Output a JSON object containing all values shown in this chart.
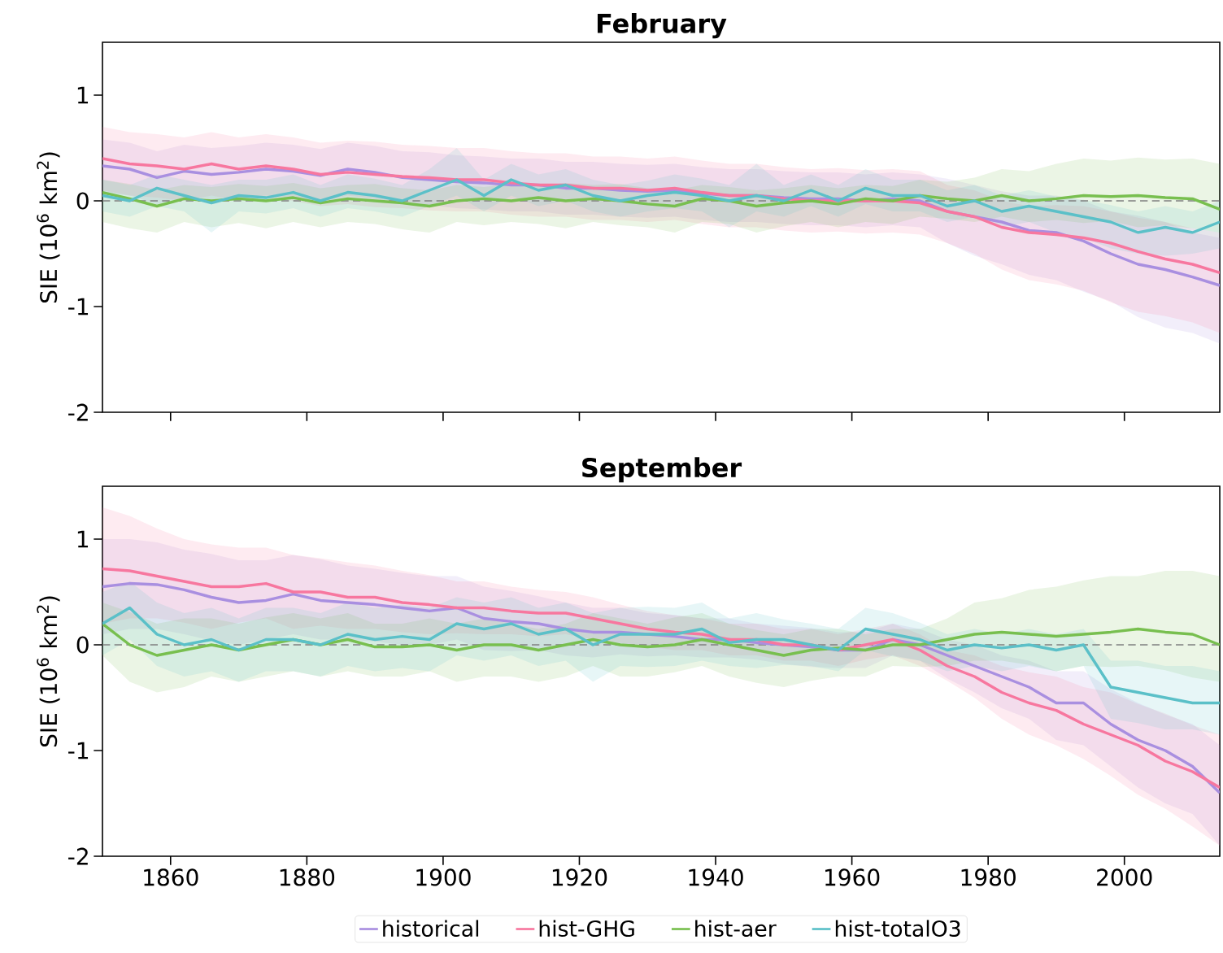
{
  "chart_data": [
    {
      "type": "line",
      "title": "February",
      "ylabel": "SIE (10$^{6}$ km$^{2}$)",
      "xlim": [
        1850,
        2014
      ],
      "ylim": [
        -2,
        1.5
      ],
      "xticks": [
        1860,
        1880,
        1900,
        1920,
        1940,
        1960,
        1980,
        2000
      ],
      "yticks": [
        -2,
        -1,
        0,
        1
      ],
      "tick_labels": "y",
      "legend": false,
      "x": [
        1850,
        1854,
        1858,
        1862,
        1866,
        1870,
        1874,
        1878,
        1882,
        1886,
        1890,
        1894,
        1898,
        1902,
        1906,
        1910,
        1914,
        1918,
        1922,
        1926,
        1930,
        1934,
        1938,
        1942,
        1946,
        1950,
        1954,
        1958,
        1962,
        1966,
        1970,
        1974,
        1978,
        1982,
        1986,
        1990,
        1994,
        1998,
        2002,
        2006,
        2010,
        2014
      ],
      "ref_lines": [
        {
          "axis": "y",
          "value": 0,
          "color": "#808080",
          "line_style": "dashed"
        }
      ],
      "series": [
        {
          "color": "#a98fe0",
          "values": [
            0.33,
            0.3,
            0.22,
            0.28,
            0.25,
            0.27,
            0.3,
            0.28,
            0.24,
            0.3,
            0.27,
            0.22,
            0.2,
            0.18,
            0.17,
            0.15,
            0.15,
            0.12,
            0.12,
            0.1,
            0.09,
            0.1,
            0.07,
            0.05,
            0.05,
            0.03,
            0.02,
            0.02,
            0.0,
            0.02,
            0.0,
            -0.1,
            -0.15,
            -0.2,
            -0.28,
            -0.3,
            -0.38,
            -0.5,
            -0.6,
            -0.65,
            -0.72,
            -0.8
          ],
          "upper": [
            0.58,
            0.55,
            0.47,
            0.53,
            0.5,
            0.52,
            0.55,
            0.53,
            0.49,
            0.55,
            0.52,
            0.47,
            0.46,
            0.43,
            0.42,
            0.4,
            0.4,
            0.37,
            0.37,
            0.35,
            0.34,
            0.35,
            0.32,
            0.3,
            0.3,
            0.28,
            0.27,
            0.27,
            0.25,
            0.27,
            0.25,
            0.21,
            0.15,
            0.09,
            0.05,
            0.05,
            0.0,
            -0.1,
            -0.14,
            -0.2,
            -0.3,
            -0.35
          ],
          "lower": [
            0.08,
            0.05,
            -0.03,
            0.03,
            0.0,
            0.02,
            0.05,
            0.03,
            -0.01,
            0.05,
            0.02,
            -0.03,
            -0.04,
            -0.07,
            -0.08,
            -0.1,
            -0.1,
            -0.13,
            -0.13,
            -0.15,
            -0.16,
            -0.15,
            -0.18,
            -0.2,
            -0.2,
            -0.22,
            -0.23,
            -0.23,
            -0.25,
            -0.23,
            -0.25,
            -0.4,
            -0.52,
            -0.6,
            -0.7,
            -0.75,
            -0.86,
            -0.95,
            -1.1,
            -1.2,
            -1.25,
            -1.35
          ]
        },
        {
          "color": "#f7779f",
          "values": [
            0.4,
            0.35,
            0.33,
            0.3,
            0.35,
            0.3,
            0.33,
            0.3,
            0.25,
            0.27,
            0.25,
            0.23,
            0.22,
            0.2,
            0.2,
            0.17,
            0.15,
            0.15,
            0.12,
            0.12,
            0.1,
            0.12,
            0.08,
            0.05,
            0.05,
            0.02,
            0.0,
            0.0,
            0.0,
            0.0,
            -0.02,
            -0.1,
            -0.15,
            -0.25,
            -0.3,
            -0.32,
            -0.35,
            -0.4,
            -0.48,
            -0.55,
            -0.6,
            -0.68
          ],
          "upper": [
            0.7,
            0.65,
            0.63,
            0.6,
            0.65,
            0.6,
            0.63,
            0.6,
            0.55,
            0.57,
            0.56,
            0.53,
            0.52,
            0.5,
            0.5,
            0.47,
            0.45,
            0.45,
            0.42,
            0.42,
            0.4,
            0.42,
            0.38,
            0.35,
            0.35,
            0.32,
            0.3,
            0.31,
            0.29,
            0.3,
            0.28,
            0.15,
            0.1,
            0.0,
            -0.05,
            -0.04,
            -0.05,
            -0.1,
            -0.16,
            -0.2,
            -0.26,
            -0.3
          ],
          "lower": [
            0.1,
            0.05,
            0.03,
            0.0,
            0.05,
            0.0,
            0.03,
            0.0,
            -0.05,
            -0.03,
            -0.06,
            -0.07,
            -0.09,
            -0.1,
            -0.1,
            -0.13,
            -0.15,
            -0.15,
            -0.18,
            -0.18,
            -0.2,
            -0.18,
            -0.22,
            -0.25,
            -0.25,
            -0.28,
            -0.3,
            -0.29,
            -0.31,
            -0.3,
            -0.32,
            -0.4,
            -0.5,
            -0.65,
            -0.75,
            -0.79,
            -0.85,
            -0.96,
            -1.05,
            -1.09,
            -1.15,
            -1.25
          ]
        },
        {
          "color": "#78bf4f",
          "values": [
            0.08,
            0.02,
            -0.05,
            0.02,
            0.0,
            0.02,
            0.0,
            0.03,
            -0.02,
            0.02,
            0.0,
            -0.02,
            -0.05,
            0.0,
            0.02,
            0.0,
            0.03,
            0.0,
            0.02,
            0.0,
            -0.03,
            -0.05,
            0.02,
            0.0,
            -0.05,
            -0.02,
            0.0,
            -0.03,
            0.02,
            0.0,
            0.05,
            0.02,
            0.0,
            0.05,
            0.0,
            0.02,
            0.05,
            0.04,
            0.05,
            0.03,
            0.02,
            -0.08
          ],
          "upper": [
            0.2,
            0.16,
            0.1,
            0.15,
            0.13,
            0.16,
            0.14,
            0.17,
            0.12,
            0.15,
            0.16,
            0.12,
            0.1,
            0.15,
            0.13,
            0.16,
            0.14,
            0.17,
            0.15,
            0.16,
            0.12,
            0.1,
            0.15,
            0.13,
            0.1,
            0.12,
            0.15,
            0.12,
            0.15,
            0.14,
            0.2,
            0.18,
            0.22,
            0.3,
            0.28,
            0.35,
            0.4,
            0.38,
            0.41,
            0.39,
            0.4,
            0.35
          ],
          "lower": [
            -0.2,
            -0.26,
            -0.3,
            -0.2,
            -0.25,
            -0.21,
            -0.26,
            -0.2,
            -0.25,
            -0.2,
            -0.22,
            -0.27,
            -0.3,
            -0.2,
            -0.23,
            -0.2,
            -0.22,
            -0.26,
            -0.2,
            -0.23,
            -0.25,
            -0.3,
            -0.2,
            -0.22,
            -0.3,
            -0.24,
            -0.2,
            -0.25,
            -0.2,
            -0.22,
            -0.15,
            -0.17,
            -0.2,
            -0.15,
            -0.2,
            -0.18,
            -0.21,
            -0.19,
            -0.25,
            -0.23,
            -0.26,
            -0.3
          ]
        },
        {
          "color": "#5bc0c8",
          "values": [
            0.05,
            0.0,
            0.12,
            0.05,
            -0.02,
            0.05,
            0.03,
            0.08,
            0.0,
            0.08,
            0.05,
            0.0,
            0.1,
            0.2,
            0.05,
            0.2,
            0.1,
            0.15,
            0.05,
            0.0,
            0.05,
            0.08,
            0.05,
            0.0,
            0.05,
            0.0,
            0.1,
            0.0,
            0.12,
            0.05,
            0.05,
            -0.05,
            0.0,
            -0.1,
            -0.05,
            -0.1,
            -0.15,
            -0.2,
            -0.3,
            -0.25,
            -0.3,
            -0.2
          ],
          "upper": [
            0.2,
            0.15,
            0.25,
            0.2,
            0.15,
            0.2,
            0.2,
            0.25,
            0.15,
            0.25,
            0.21,
            0.15,
            0.3,
            0.5,
            0.2,
            0.35,
            0.25,
            0.3,
            0.2,
            0.15,
            0.19,
            0.25,
            0.21,
            0.15,
            0.35,
            0.15,
            0.25,
            0.15,
            0.3,
            0.2,
            0.2,
            0.1,
            0.15,
            0.05,
            0.1,
            0.04,
            0.01,
            -0.04,
            -0.1,
            -0.05,
            -0.1,
            0.0
          ],
          "lower": [
            -0.1,
            -0.15,
            -0.05,
            -0.1,
            -0.3,
            -0.1,
            -0.12,
            -0.07,
            -0.15,
            -0.07,
            -0.1,
            -0.15,
            -0.05,
            0.05,
            -0.1,
            0.05,
            -0.05,
            0.0,
            -0.1,
            -0.15,
            -0.1,
            -0.07,
            -0.1,
            -0.25,
            -0.1,
            -0.15,
            -0.05,
            -0.15,
            -0.03,
            -0.1,
            -0.1,
            -0.2,
            -0.15,
            -0.25,
            -0.2,
            -0.3,
            -0.35,
            -0.45,
            -0.5,
            -0.52,
            -0.5,
            -0.45
          ]
        }
      ]
    },
    {
      "type": "line",
      "title": "September",
      "ylabel": "SIE (10$^{6}$ km$^{2}$)",
      "xlim": [
        1850,
        2014
      ],
      "ylim": [
        -2,
        1.5
      ],
      "xticks": [
        1860,
        1880,
        1900,
        1920,
        1940,
        1960,
        1980,
        2000
      ],
      "yticks": [
        -2,
        -1,
        0,
        1
      ],
      "legend": "bottom",
      "x": [
        1850,
        1854,
        1858,
        1862,
        1866,
        1870,
        1874,
        1878,
        1882,
        1886,
        1890,
        1894,
        1898,
        1902,
        1906,
        1910,
        1914,
        1918,
        1922,
        1926,
        1930,
        1934,
        1938,
        1942,
        1946,
        1950,
        1954,
        1958,
        1962,
        1966,
        1970,
        1974,
        1978,
        1982,
        1986,
        1990,
        1994,
        1998,
        2002,
        2006,
        2010,
        2014
      ],
      "ref_lines": [
        {
          "axis": "y",
          "value": 0,
          "color": "#808080",
          "line_style": "dashed"
        }
      ],
      "series": [
        {
          "name": "historical",
          "color": "#a98fe0",
          "values": [
            0.55,
            0.58,
            0.57,
            0.52,
            0.45,
            0.4,
            0.42,
            0.48,
            0.42,
            0.4,
            0.38,
            0.35,
            0.32,
            0.35,
            0.25,
            0.22,
            0.2,
            0.15,
            0.12,
            0.12,
            0.1,
            0.08,
            0.05,
            0.05,
            0.02,
            0.0,
            -0.02,
            -0.05,
            -0.05,
            0.05,
            0.0,
            -0.1,
            -0.2,
            -0.3,
            -0.4,
            -0.55,
            -0.55,
            -0.75,
            -0.9,
            -1.0,
            -1.15,
            -1.4
          ],
          "upper": [
            1.0,
            1.0,
            0.97,
            0.9,
            0.86,
            0.8,
            0.8,
            0.85,
            0.81,
            0.75,
            0.72,
            0.68,
            0.65,
            0.65,
            0.55,
            0.51,
            0.46,
            0.4,
            0.35,
            0.35,
            0.3,
            0.28,
            0.25,
            0.25,
            0.2,
            0.18,
            0.16,
            0.12,
            0.12,
            0.2,
            0.15,
            0.05,
            0.0,
            -0.1,
            -0.15,
            -0.25,
            -0.25,
            -0.42,
            -0.55,
            -0.66,
            -0.75,
            -0.95
          ],
          "lower": [
            0.1,
            0.15,
            0.15,
            0.1,
            0.04,
            0.0,
            0.05,
            0.1,
            0.05,
            0.05,
            0.03,
            0.0,
            0.0,
            0.05,
            -0.05,
            -0.06,
            -0.05,
            -0.1,
            -0.12,
            -0.09,
            -0.11,
            -0.1,
            -0.12,
            -0.12,
            -0.14,
            -0.18,
            -0.21,
            -0.22,
            -0.22,
            -0.1,
            -0.15,
            -0.32,
            -0.45,
            -0.6,
            -0.7,
            -0.9,
            -0.95,
            -1.15,
            -1.35,
            -1.5,
            -1.6,
            -1.9
          ]
        },
        {
          "name": "hist-GHG",
          "color": "#f7779f",
          "values": [
            0.72,
            0.7,
            0.65,
            0.6,
            0.55,
            0.55,
            0.58,
            0.5,
            0.5,
            0.45,
            0.45,
            0.4,
            0.38,
            0.35,
            0.35,
            0.32,
            0.3,
            0.3,
            0.25,
            0.2,
            0.15,
            0.12,
            0.1,
            0.05,
            0.05,
            0.0,
            0.0,
            -0.05,
            0.0,
            0.05,
            -0.05,
            -0.2,
            -0.3,
            -0.45,
            -0.55,
            -0.62,
            -0.75,
            -0.85,
            -0.95,
            -1.1,
            -1.2,
            -1.35
          ],
          "upper": [
            1.3,
            1.22,
            1.1,
            1.0,
            0.95,
            0.92,
            0.92,
            0.85,
            0.82,
            0.78,
            0.75,
            0.7,
            0.66,
            0.6,
            0.6,
            0.55,
            0.52,
            0.5,
            0.45,
            0.38,
            0.32,
            0.28,
            0.25,
            0.2,
            0.2,
            0.15,
            0.15,
            0.1,
            0.15,
            0.2,
            0.1,
            -0.05,
            -0.1,
            -0.2,
            -0.26,
            -0.3,
            -0.4,
            -0.45,
            -0.56,
            -0.65,
            -0.76,
            -0.85
          ],
          "lower": [
            0.2,
            0.25,
            0.25,
            0.21,
            0.15,
            0.21,
            0.25,
            0.15,
            0.18,
            0.15,
            0.15,
            0.12,
            0.1,
            0.11,
            0.1,
            0.1,
            0.08,
            0.1,
            0.05,
            0.02,
            -0.02,
            -0.05,
            -0.05,
            -0.1,
            -0.1,
            -0.15,
            -0.15,
            -0.2,
            -0.14,
            -0.1,
            -0.2,
            -0.34,
            -0.5,
            -0.7,
            -0.85,
            -0.95,
            -1.08,
            -1.24,
            -1.42,
            -1.55,
            -1.72,
            -1.9
          ]
        },
        {
          "name": "hist-aer",
          "color": "#78bf4f",
          "values": [
            0.2,
            0.0,
            -0.1,
            -0.05,
            0.0,
            -0.05,
            0.0,
            0.05,
            0.0,
            0.05,
            -0.02,
            -0.02,
            0.0,
            -0.05,
            0.0,
            0.0,
            -0.05,
            0.0,
            0.05,
            0.0,
            -0.02,
            0.0,
            0.05,
            0.0,
            -0.05,
            -0.1,
            -0.05,
            -0.03,
            -0.05,
            0.0,
            0.0,
            0.05,
            0.1,
            0.12,
            0.1,
            0.08,
            0.1,
            0.12,
            0.15,
            0.12,
            0.1,
            0.0
          ],
          "upper": [
            0.4,
            0.31,
            0.2,
            0.25,
            0.25,
            0.2,
            0.26,
            0.3,
            0.25,
            0.3,
            0.2,
            0.2,
            0.25,
            0.2,
            0.25,
            0.2,
            0.15,
            0.2,
            0.3,
            0.25,
            0.2,
            0.26,
            0.3,
            0.2,
            0.14,
            0.1,
            0.15,
            0.15,
            0.1,
            0.15,
            0.15,
            0.25,
            0.4,
            0.44,
            0.52,
            0.55,
            0.61,
            0.65,
            0.65,
            0.7,
            0.7,
            0.65
          ],
          "lower": [
            -0.1,
            -0.35,
            -0.45,
            -0.4,
            -0.3,
            -0.35,
            -0.3,
            -0.25,
            -0.3,
            -0.25,
            -0.3,
            -0.3,
            -0.25,
            -0.35,
            -0.3,
            -0.3,
            -0.35,
            -0.3,
            -0.2,
            -0.3,
            -0.3,
            -0.26,
            -0.2,
            -0.3,
            -0.36,
            -0.4,
            -0.34,
            -0.3,
            -0.3,
            -0.2,
            -0.21,
            -0.2,
            -0.15,
            -0.15,
            -0.19,
            -0.25,
            -0.2,
            -0.21,
            -0.2,
            -0.24,
            -0.31,
            -0.35
          ]
        },
        {
          "name": "hist-totalO3",
          "color": "#5bc0c8",
          "values": [
            0.2,
            0.35,
            0.1,
            0.0,
            0.05,
            -0.05,
            0.05,
            0.05,
            0.0,
            0.1,
            0.05,
            0.08,
            0.05,
            0.2,
            0.15,
            0.2,
            0.1,
            0.15,
            0.0,
            0.1,
            0.1,
            0.1,
            0.15,
            0.02,
            0.05,
            0.05,
            0.0,
            -0.05,
            0.15,
            0.1,
            0.05,
            -0.05,
            0.0,
            -0.03,
            0.0,
            -0.05,
            0.0,
            -0.4,
            -0.45,
            -0.5,
            -0.55,
            -0.55
          ],
          "upper": [
            0.5,
            0.6,
            0.4,
            0.3,
            0.35,
            0.25,
            0.35,
            0.35,
            0.3,
            0.4,
            0.35,
            0.38,
            0.35,
            0.45,
            0.4,
            0.45,
            0.35,
            0.4,
            0.3,
            0.35,
            0.36,
            0.35,
            0.4,
            0.25,
            0.3,
            0.24,
            0.2,
            0.15,
            0.35,
            0.3,
            0.21,
            0.1,
            0.15,
            0.1,
            0.15,
            0.1,
            0.15,
            -0.15,
            -0.15,
            -0.2,
            -0.2,
            -0.25
          ],
          "lower": [
            -0.1,
            0.05,
            -0.2,
            -0.3,
            -0.25,
            -0.35,
            -0.25,
            -0.25,
            -0.3,
            -0.2,
            -0.25,
            -0.22,
            -0.25,
            -0.1,
            -0.15,
            -0.1,
            -0.2,
            -0.15,
            -0.35,
            -0.2,
            -0.21,
            -0.2,
            -0.15,
            -0.2,
            -0.22,
            -0.19,
            -0.2,
            -0.25,
            -0.05,
            -0.11,
            -0.15,
            -0.25,
            -0.2,
            -0.25,
            -0.2,
            -0.25,
            -0.2,
            -0.7,
            -0.74,
            -0.8,
            -0.8,
            -0.85
          ]
        }
      ]
    }
  ]
}
